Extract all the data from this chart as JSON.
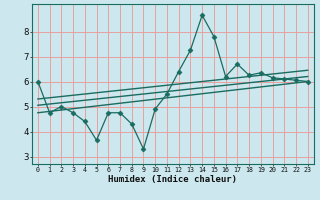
{
  "xlabel": "Humidex (Indice chaleur)",
  "background_color": "#cce8ee",
  "grid_color": "#e8a0a0",
  "line_color": "#1a6b60",
  "xlim": [
    -0.5,
    23.5
  ],
  "ylim": [
    2.7,
    9.1
  ],
  "yticks": [
    3,
    4,
    5,
    6,
    7,
    8
  ],
  "xticks": [
    0,
    1,
    2,
    3,
    4,
    5,
    6,
    7,
    8,
    9,
    10,
    11,
    12,
    13,
    14,
    15,
    16,
    17,
    18,
    19,
    20,
    21,
    22,
    23
  ],
  "data_x": [
    0,
    1,
    2,
    3,
    4,
    5,
    6,
    7,
    8,
    9,
    10,
    11,
    12,
    13,
    14,
    15,
    16,
    17,
    18,
    19,
    20,
    21,
    22,
    23
  ],
  "data_y": [
    6.0,
    4.75,
    5.0,
    4.75,
    4.4,
    3.65,
    4.75,
    4.75,
    4.3,
    3.3,
    4.9,
    5.5,
    6.4,
    7.25,
    8.65,
    7.8,
    6.2,
    6.7,
    6.25,
    6.35,
    6.15,
    6.1,
    6.05,
    6.0
  ],
  "trend1_x": [
    0,
    23
  ],
  "trend1_y": [
    4.75,
    6.0
  ],
  "trend2_x": [
    0,
    23
  ],
  "trend2_y": [
    5.05,
    6.2
  ],
  "trend3_x": [
    0,
    23
  ],
  "trend3_y": [
    5.3,
    6.45
  ]
}
